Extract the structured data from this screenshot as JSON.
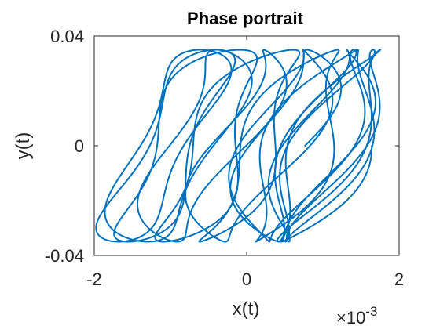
{
  "figure": {
    "background": "#ffffff"
  },
  "chart_data": {
    "type": "line",
    "title": "Phase portrait",
    "xlabel": "x(t)",
    "ylabel": "y(t)",
    "xlim": [
      -0.002,
      0.002
    ],
    "ylim": [
      -0.04,
      0.04
    ],
    "xticks": [
      -0.002,
      0,
      0.002
    ],
    "xtick_labels": [
      "-2",
      "0",
      "2"
    ],
    "yticks": [
      -0.04,
      0,
      0.04
    ],
    "ytick_labels": [
      "-0.04",
      "0",
      "0.04"
    ],
    "x_exponent_base": "×10",
    "x_exponent_power": "-3",
    "grid": false,
    "box": true,
    "line_color": "#0072BD",
    "axis_color": "#262626",
    "series": [
      {
        "description_values": {
          "y_amplitude": 0.035,
          "x_center_amplitude": 0.0011,
          "x_shear_amplitude": 0.0007,
          "cycles": 14
        }
      }
    ]
  }
}
